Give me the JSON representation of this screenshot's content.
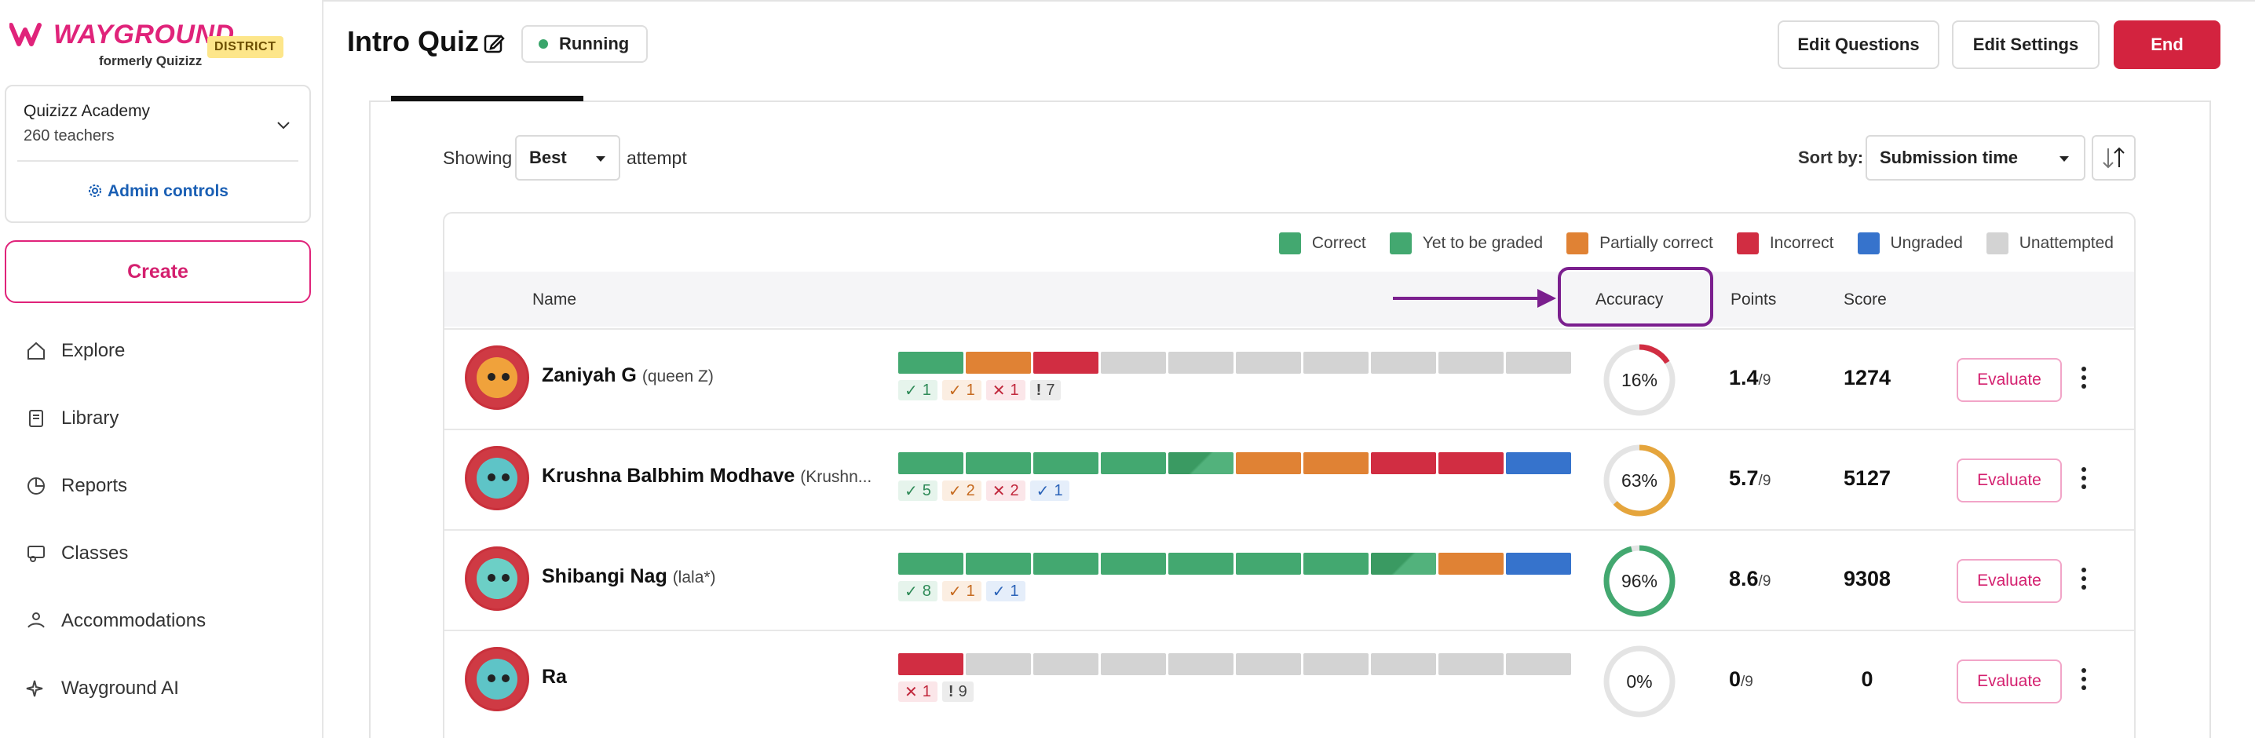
{
  "brand": {
    "name": "WAYGROUND",
    "sub": "formerly Quizizz",
    "badge": "DISTRICT"
  },
  "org": {
    "name": "Quizizz Academy",
    "members": "260 teachers",
    "admin_label": "Admin controls"
  },
  "create_label": "Create",
  "nav": [
    {
      "label": "Explore",
      "icon": "home-icon"
    },
    {
      "label": "Library",
      "icon": "book-icon"
    },
    {
      "label": "Reports",
      "icon": "chart-icon"
    },
    {
      "label": "Classes",
      "icon": "classes-icon"
    },
    {
      "label": "Accommodations",
      "icon": "accommodations-icon"
    },
    {
      "label": "Wayground AI",
      "icon": "sparkle-icon"
    }
  ],
  "header": {
    "title": "Intro Quiz",
    "status": "Running",
    "edit_questions": "Edit Questions",
    "edit_settings": "Edit Settings",
    "end": "End"
  },
  "filters": {
    "showing_prefix": "Showing",
    "attempt_value": "Best",
    "attempt_suffix": "attempt",
    "sort_label": "Sort by:",
    "sort_value": "Submission time"
  },
  "colors": {
    "correct": "#43a870",
    "yet_to_grade": "#43a870",
    "partial": "#e08234",
    "incorrect": "#d12d42",
    "ungraded": "#3673cc",
    "unattempted": "#d3d3d3",
    "accent": "#e0237a",
    "highlight": "#7b1f8e"
  },
  "legend": [
    "Correct",
    "Yet to be graded",
    "Partially correct",
    "Incorrect",
    "Ungraded",
    "Unattempted"
  ],
  "table": {
    "columns": {
      "name": "Name",
      "accuracy": "Accuracy",
      "points": "Points",
      "score": "Score"
    },
    "evaluate_label": "Evaluate",
    "rows": [
      {
        "name": "Zaniyah G",
        "nick": "(queen Z)",
        "bars": [
          "c",
          "p",
          "i",
          "u",
          "u",
          "u",
          "u",
          "u",
          "u",
          "u"
        ],
        "chips": [
          {
            "type": "correct",
            "glyph": "✓",
            "count": "1"
          },
          {
            "type": "partial",
            "glyph": "✓",
            "count": "1"
          },
          {
            "type": "incorrect",
            "glyph": "✕",
            "count": "1"
          },
          {
            "type": "unattempted",
            "glyph": "!",
            "count": "7"
          }
        ],
        "accuracy": 16,
        "accuracy_label": "16%",
        "points": "1.4",
        "points_max": "/9",
        "score": "1274"
      },
      {
        "name": "Krushna Balbhim Modhave",
        "nick": "(Krushn...",
        "bars": [
          "c",
          "c",
          "c",
          "c",
          "y",
          "p",
          "p",
          "i",
          "i",
          "g"
        ],
        "chips": [
          {
            "type": "correct",
            "glyph": "✓",
            "count": "5"
          },
          {
            "type": "partial",
            "glyph": "✓",
            "count": "2"
          },
          {
            "type": "incorrect",
            "glyph": "✕",
            "count": "2"
          },
          {
            "type": "ungraded",
            "glyph": "✓",
            "count": "1"
          }
        ],
        "accuracy": 63,
        "accuracy_label": "63%",
        "points": "5.7",
        "points_max": "/9",
        "score": "5127"
      },
      {
        "name": "Shibangi Nag",
        "nick": "(lala*)",
        "bars": [
          "c",
          "c",
          "c",
          "c",
          "c",
          "c",
          "c",
          "y",
          "p",
          "g"
        ],
        "chips": [
          {
            "type": "correct",
            "glyph": "✓",
            "count": "8"
          },
          {
            "type": "partial",
            "glyph": "✓",
            "count": "1"
          },
          {
            "type": "ungraded",
            "glyph": "✓",
            "count": "1"
          }
        ],
        "accuracy": 96,
        "accuracy_label": "96%",
        "points": "8.6",
        "points_max": "/9",
        "score": "9308"
      },
      {
        "name": "Ra",
        "nick": "",
        "bars": [
          "i",
          "u",
          "u",
          "u",
          "u",
          "u",
          "u",
          "u",
          "u",
          "u"
        ],
        "chips": [
          {
            "type": "incorrect",
            "glyph": "✕",
            "count": "1"
          },
          {
            "type": "unattempted",
            "glyph": "!",
            "count": "9"
          }
        ],
        "accuracy": 0,
        "accuracy_label": "0%",
        "points": "0",
        "points_max": "/9",
        "score": "0"
      }
    ]
  }
}
